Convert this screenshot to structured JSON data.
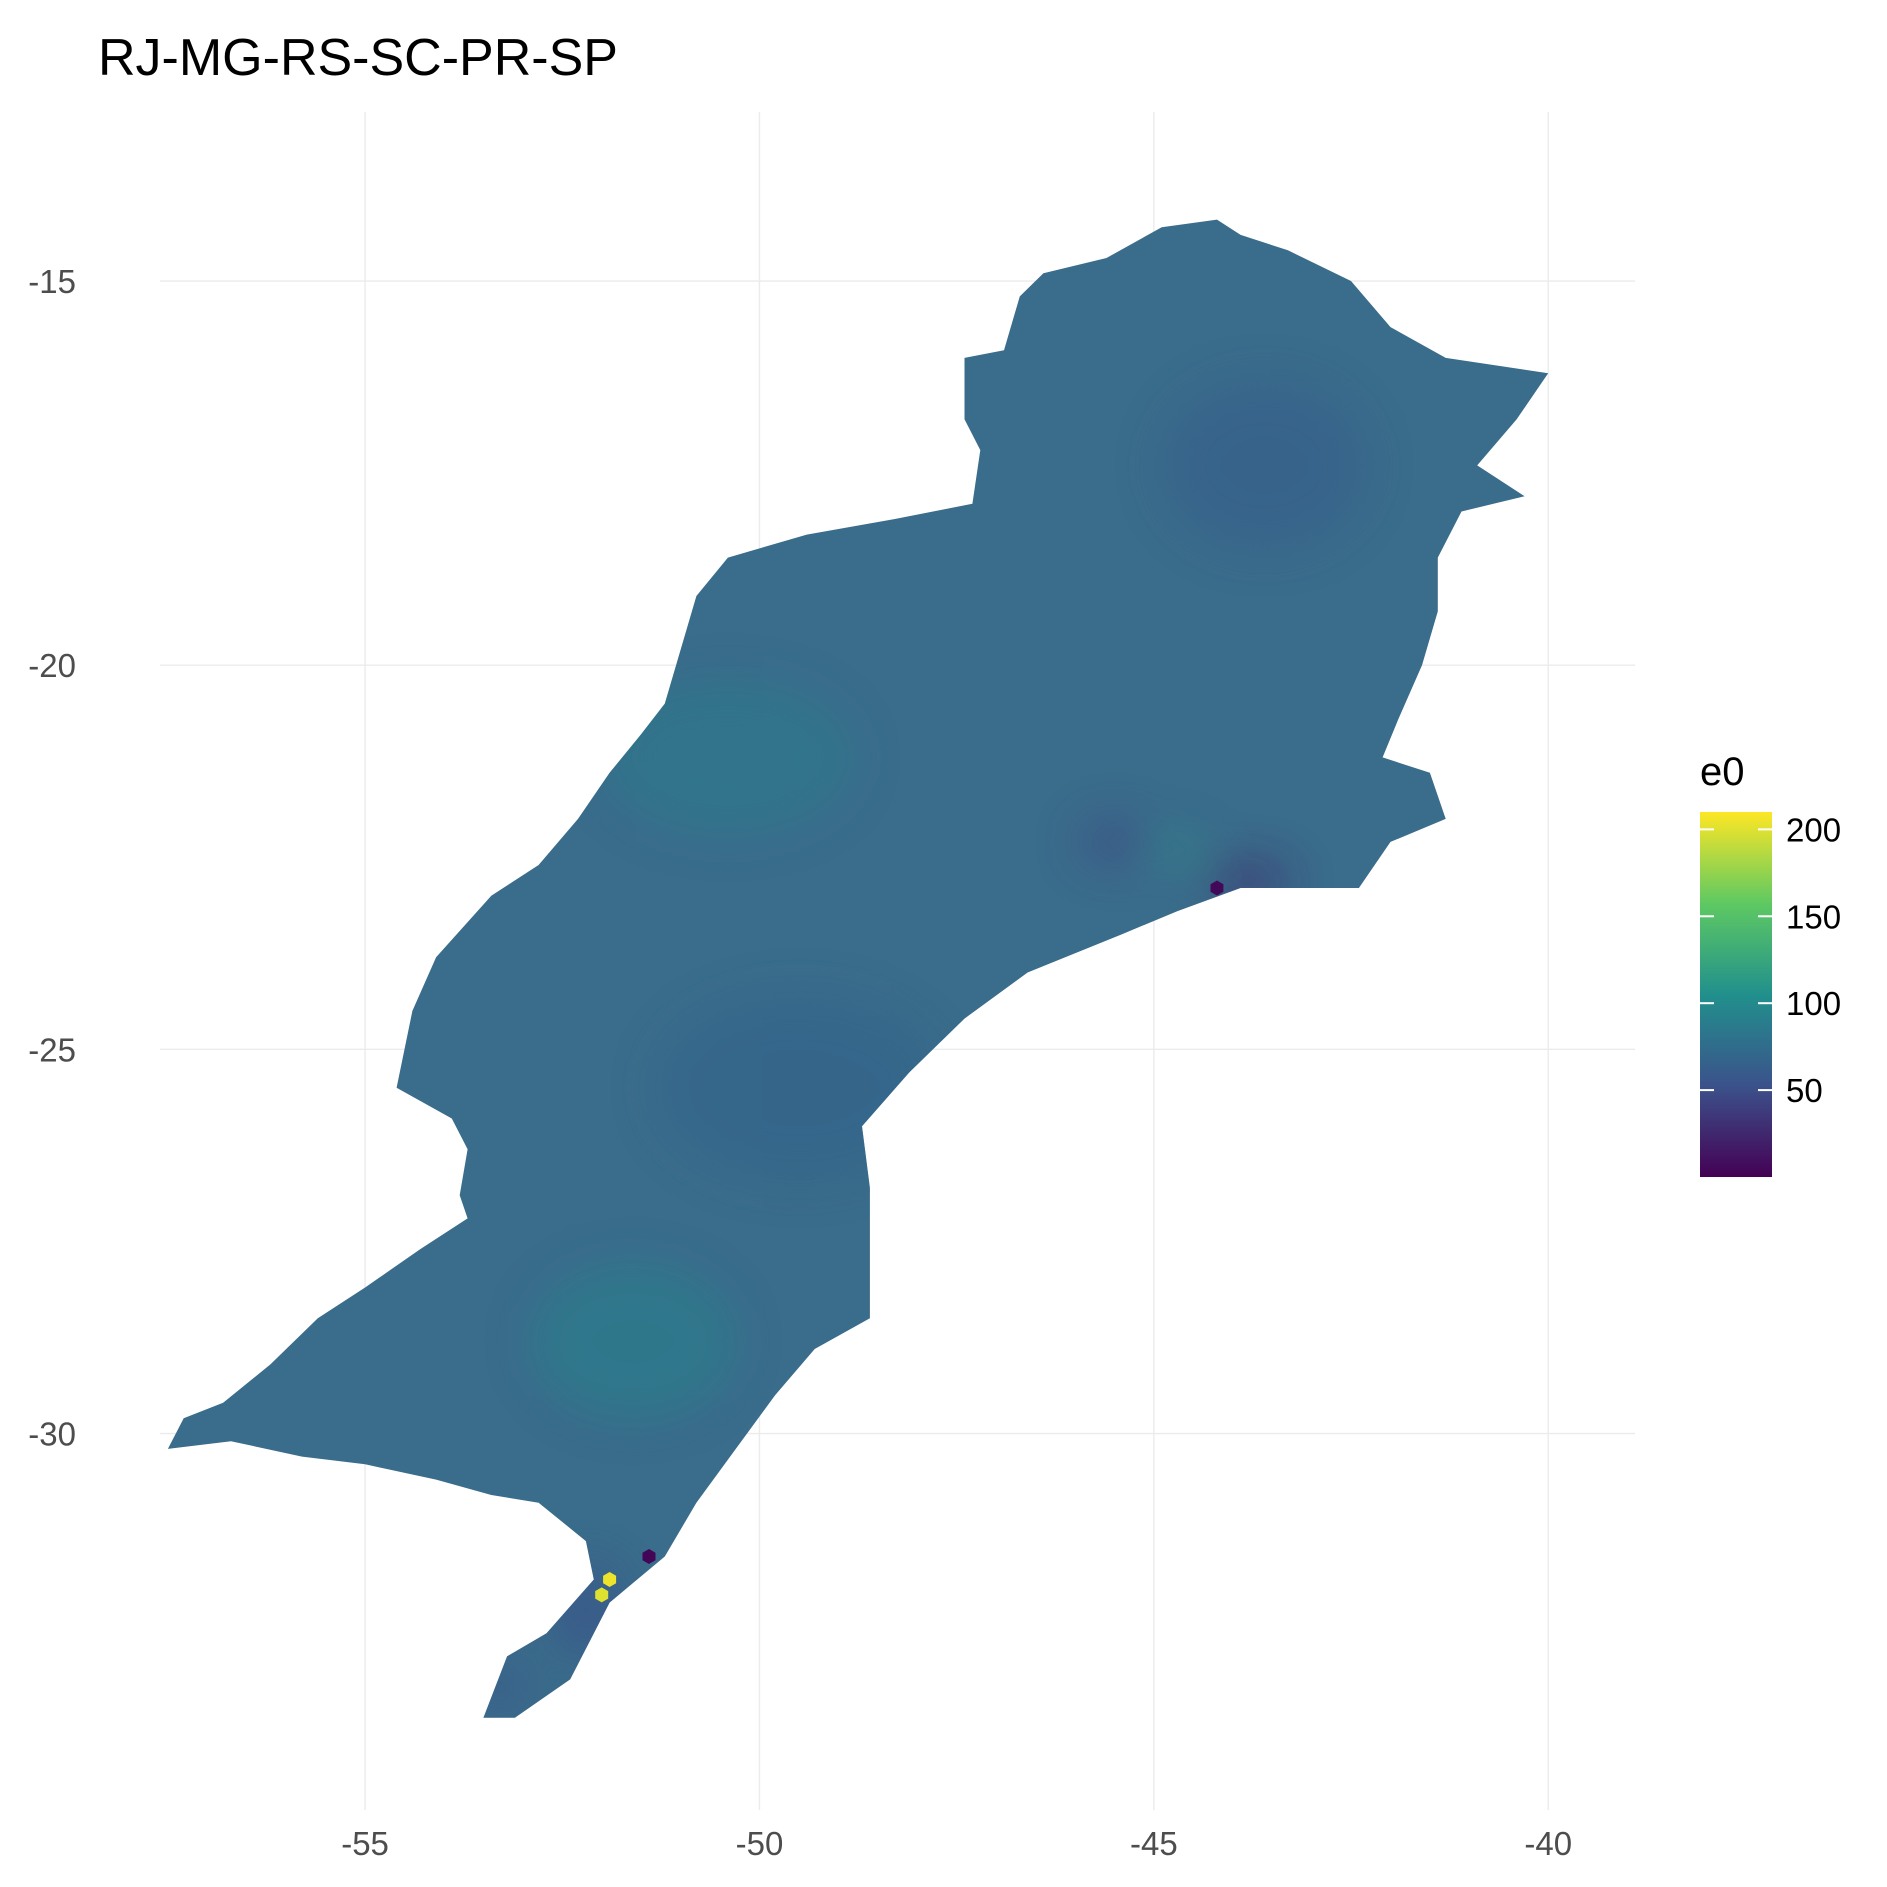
{
  "title": "RJ-MG-RS-SC-PR-SP",
  "colors": {
    "region_fill": "#3a6c8b",
    "region_fill_alt": "#33788d",
    "region_fill_dark": "#3e4f87",
    "low_value": "#440154",
    "high_value": "#fde725",
    "grid": "#ebebeb"
  },
  "chart_data": {
    "type": "heatmap",
    "title": "RJ-MG-RS-SC-PR-SP",
    "xlabel": "",
    "ylabel": "",
    "x_ticks": [
      "-55",
      "-50",
      "-45",
      "-40"
    ],
    "y_ticks": [
      "-15",
      "-20",
      "-25",
      "-30"
    ],
    "x_tick_values": [
      -55,
      -50,
      -45,
      -40
    ],
    "y_tick_values": [
      -15,
      -20,
      -25,
      -30
    ],
    "xlim": [
      -57.6,
      -38.9
    ],
    "ylim": [
      -34.9,
      -12.8
    ],
    "grid": true,
    "legend": {
      "title": "e0",
      "position": "right",
      "labels": [
        "200",
        "150",
        "100",
        "50"
      ],
      "values": [
        200,
        150,
        100,
        50
      ],
      "range": [
        0,
        210
      ],
      "palette": [
        "#440154",
        "#3b528b",
        "#21908c",
        "#5ec962",
        "#fde725"
      ]
    },
    "region_outline": [
      [
        -57.5,
        -30.2
      ],
      [
        -57.3,
        -29.8
      ],
      [
        -56.8,
        -29.6
      ],
      [
        -56.2,
        -29.1
      ],
      [
        -55.6,
        -28.5
      ],
      [
        -55.0,
        -28.1
      ],
      [
        -54.3,
        -27.6
      ],
      [
        -53.7,
        -27.2
      ],
      [
        -53.8,
        -26.9
      ],
      [
        -53.7,
        -26.3
      ],
      [
        -53.9,
        -25.9
      ],
      [
        -54.6,
        -25.5
      ],
      [
        -54.4,
        -24.5
      ],
      [
        -54.1,
        -23.8
      ],
      [
        -53.4,
        -23.0
      ],
      [
        -52.8,
        -22.6
      ],
      [
        -52.3,
        -22.0
      ],
      [
        -51.9,
        -21.4
      ],
      [
        -51.5,
        -20.9
      ],
      [
        -51.2,
        -20.5
      ],
      [
        -51.0,
        -19.8
      ],
      [
        -50.8,
        -19.1
      ],
      [
        -50.4,
        -18.6
      ],
      [
        -49.4,
        -18.3
      ],
      [
        -48.3,
        -18.1
      ],
      [
        -47.3,
        -17.9
      ],
      [
        -47.2,
        -17.2
      ],
      [
        -47.4,
        -16.8
      ],
      [
        -47.4,
        -16.0
      ],
      [
        -46.9,
        -15.9
      ],
      [
        -46.7,
        -15.2
      ],
      [
        -46.4,
        -14.9
      ],
      [
        -45.6,
        -14.7
      ],
      [
        -44.9,
        -14.3
      ],
      [
        -44.2,
        -14.2
      ],
      [
        -43.9,
        -14.4
      ],
      [
        -43.3,
        -14.6
      ],
      [
        -42.5,
        -15.0
      ],
      [
        -42.0,
        -15.6
      ],
      [
        -41.3,
        -16.0
      ],
      [
        -40.0,
        -16.2
      ],
      [
        -40.4,
        -16.8
      ],
      [
        -40.9,
        -17.4
      ],
      [
        -40.3,
        -17.8
      ],
      [
        -41.1,
        -18.0
      ],
      [
        -41.4,
        -18.6
      ],
      [
        -41.4,
        -19.3
      ],
      [
        -41.6,
        -20.0
      ],
      [
        -41.9,
        -20.7
      ],
      [
        -42.1,
        -21.2
      ],
      [
        -41.5,
        -21.4
      ],
      [
        -41.3,
        -22.0
      ],
      [
        -42.0,
        -22.3
      ],
      [
        -42.4,
        -22.9
      ],
      [
        -43.3,
        -22.9
      ],
      [
        -43.9,
        -22.9
      ],
      [
        -44.7,
        -23.2
      ],
      [
        -45.4,
        -23.5
      ],
      [
        -46.6,
        -24.0
      ],
      [
        -47.4,
        -24.6
      ],
      [
        -48.1,
        -25.3
      ],
      [
        -48.7,
        -26.0
      ],
      [
        -48.6,
        -26.8
      ],
      [
        -48.6,
        -27.6
      ],
      [
        -48.6,
        -28.5
      ],
      [
        -49.3,
        -28.9
      ],
      [
        -49.8,
        -29.5
      ],
      [
        -50.3,
        -30.2
      ],
      [
        -50.8,
        -30.9
      ],
      [
        -51.2,
        -31.6
      ],
      [
        -51.9,
        -32.2
      ],
      [
        -52.4,
        -33.2
      ],
      [
        -53.1,
        -33.7
      ],
      [
        -53.5,
        -33.7
      ],
      [
        -53.2,
        -32.9
      ],
      [
        -52.7,
        -32.6
      ],
      [
        -52.1,
        -31.9
      ],
      [
        -52.2,
        -31.4
      ],
      [
        -52.8,
        -30.9
      ],
      [
        -53.4,
        -30.8
      ],
      [
        -54.1,
        -30.6
      ],
      [
        -55.0,
        -30.4
      ],
      [
        -55.8,
        -30.3
      ],
      [
        -56.7,
        -30.1
      ]
    ],
    "shade_patches": [
      {
        "x": -43.8,
        "y": -22.8,
        "rx": 0.55,
        "ry": 0.25,
        "value": 20
      },
      {
        "x": -45.5,
        "y": -22.3,
        "rx": 0.45,
        "ry": 0.3,
        "value": 45
      },
      {
        "x": -52.2,
        "y": -32.3,
        "rx": 0.45,
        "ry": 0.6,
        "value": 50
      },
      {
        "x": -53.3,
        "y": -33.3,
        "rx": 0.35,
        "ry": 0.35,
        "value": 55
      },
      {
        "x": -49.5,
        "y": -25.5,
        "rx": 1.8,
        "ry": 1.2,
        "value": 68
      },
      {
        "x": -43.6,
        "y": -17.4,
        "rx": 1.3,
        "ry": 1.1,
        "value": 62
      },
      {
        "x": -51.6,
        "y": -28.8,
        "rx": 1.3,
        "ry": 1.0,
        "value": 92
      },
      {
        "x": -50.4,
        "y": -21.2,
        "rx": 1.6,
        "ry": 1.0,
        "value": 88
      },
      {
        "x": -44.7,
        "y": -22.4,
        "rx": 0.3,
        "ry": 0.2,
        "value": 110
      }
    ],
    "outlier_cells": [
      {
        "x": -44.2,
        "y": -22.9,
        "value": 5
      },
      {
        "x": -51.4,
        "y": -31.6,
        "value": 3
      },
      {
        "x": -51.9,
        "y": -31.9,
        "value": 205
      },
      {
        "x": -52.0,
        "y": -32.1,
        "value": 200
      }
    ]
  }
}
